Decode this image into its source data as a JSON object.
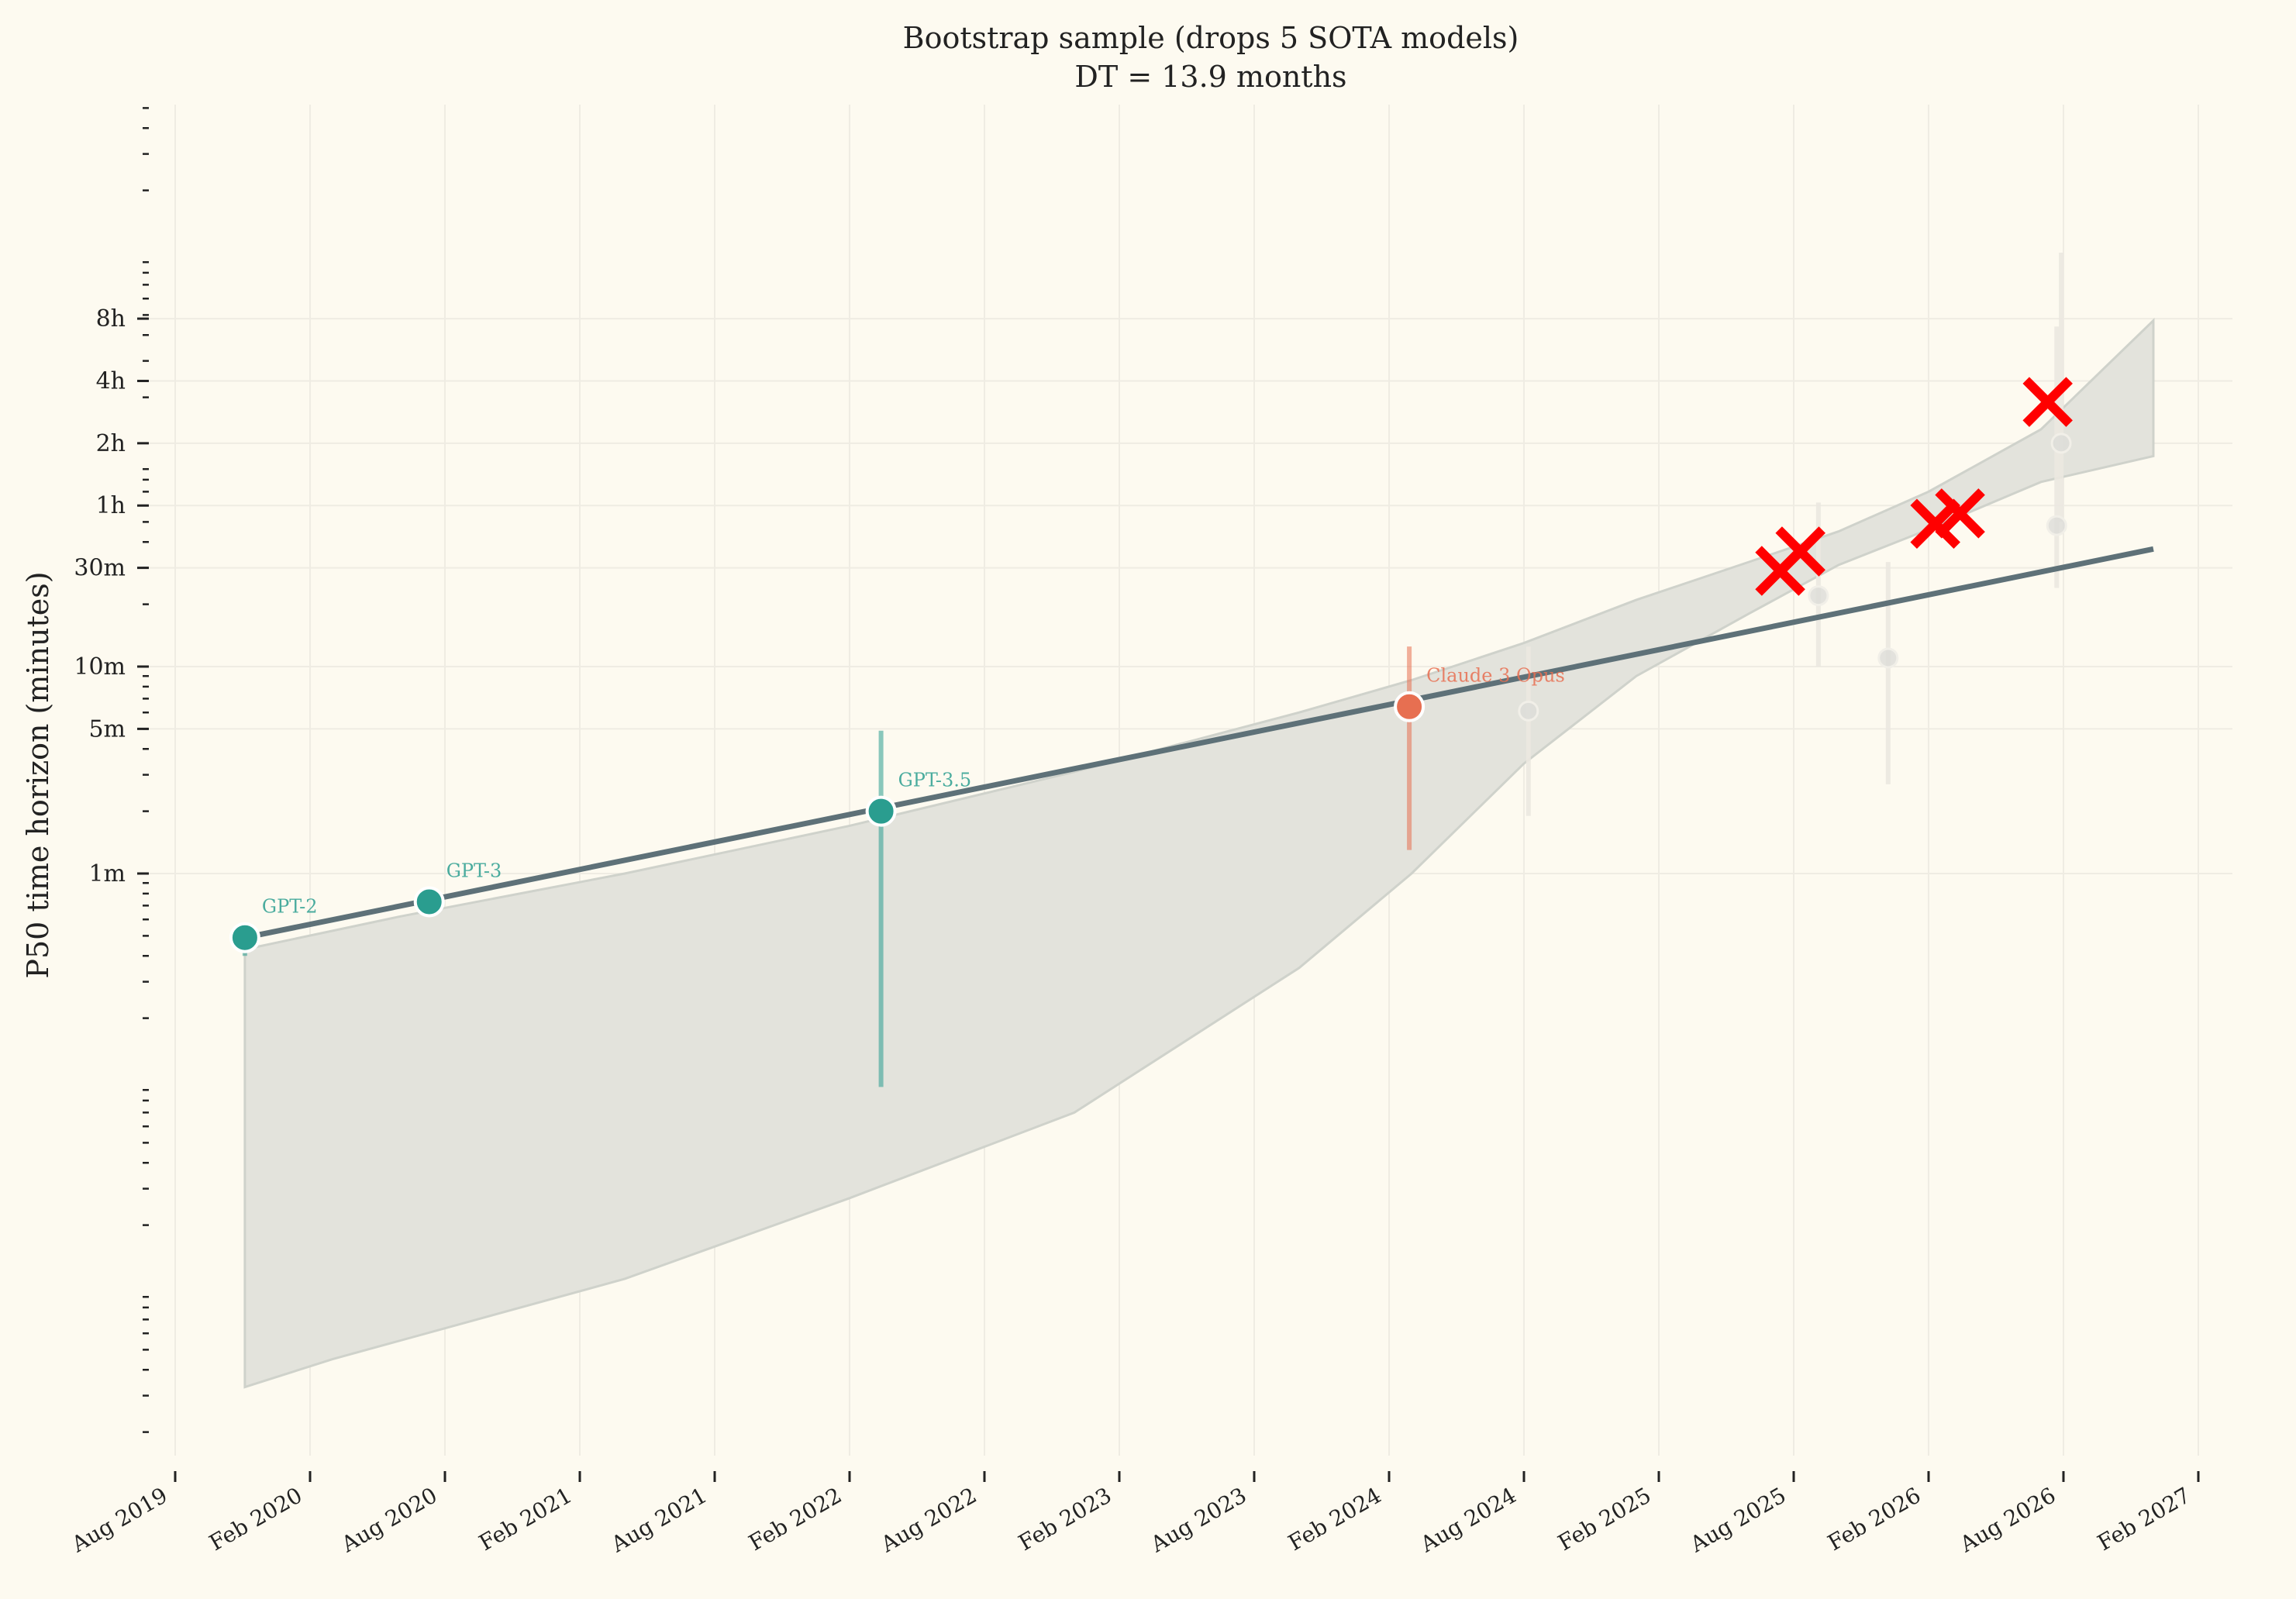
{
  "chart_data": {
    "type": "scatter",
    "title": "Bootstrap sample (drops 5 SOTA models)",
    "subtitle": "DT = 13.9 months",
    "xlabel": "",
    "ylabel": "P50 time horizon (minutes)",
    "y_scale": "log",
    "ylim_minutes": [
      0.002,
      3000
    ],
    "y_ticks": [
      {
        "label": "1m",
        "minutes": 1
      },
      {
        "label": "5m",
        "minutes": 5
      },
      {
        "label": "10m",
        "minutes": 10
      },
      {
        "label": "30m",
        "minutes": 30
      },
      {
        "label": "1h",
        "minutes": 60
      },
      {
        "label": "2h",
        "minutes": 120
      },
      {
        "label": "4h",
        "minutes": 240
      },
      {
        "label": "8h",
        "minutes": 480
      }
    ],
    "x_ticks": [
      "Aug 2019",
      "Feb 2020",
      "Aug 2020",
      "Feb 2021",
      "Aug 2021",
      "Feb 2022",
      "Aug 2022",
      "Feb 2023",
      "Aug 2023",
      "Feb 2024",
      "Aug 2024",
      "Feb 2025",
      "Aug 2025",
      "Feb 2026",
      "Aug 2026",
      "Feb 2027"
    ],
    "grid": true,
    "trend_line": {
      "color": "#5e7178",
      "start": {
        "month_from_aug2019": 3.1,
        "minutes": 0.49
      },
      "end": {
        "month_from_aug2019": 88.0,
        "minutes": 37
      }
    },
    "confidence_band": {
      "color": "#e3e3dc",
      "upper": [
        [
          3.1,
          0.43
        ],
        [
          10,
          0.62
        ],
        [
          20,
          1.0
        ],
        [
          30,
          1.7
        ],
        [
          40,
          3.1
        ],
        [
          50,
          6.0
        ],
        [
          55,
          8.6
        ],
        [
          60,
          13
        ],
        [
          65,
          21
        ],
        [
          70,
          32
        ],
        [
          74,
          45
        ],
        [
          78,
          70
        ],
        [
          83,
          140
        ],
        [
          88,
          470
        ]
      ],
      "lower": [
        [
          3.1,
          0.43
        ],
        [
          3.1,
          0.0033
        ],
        [
          7,
          0.0045
        ],
        [
          20,
          0.011
        ],
        [
          30,
          0.027
        ],
        [
          40,
          0.07
        ],
        [
          50,
          0.35
        ],
        [
          55,
          1.0
        ],
        [
          60,
          3.4
        ],
        [
          65,
          9
        ],
        [
          70,
          18
        ],
        [
          74,
          31
        ],
        [
          78,
          46
        ],
        [
          83,
          78
        ],
        [
          88,
          104
        ]
      ]
    },
    "points": [
      {
        "label": "GPT-2",
        "month_from_aug2019": 3.1,
        "minutes": 0.49,
        "err_low": 0.4,
        "err_high": 0.54,
        "color": "#2a9d8f",
        "highlighted": true
      },
      {
        "label": "GPT-3",
        "month_from_aug2019": 11.3,
        "minutes": 0.73,
        "err_low": 0.64,
        "err_high": 0.84,
        "color": "#2a9d8f",
        "highlighted": true
      },
      {
        "label": "GPT-3.5",
        "month_from_aug2019": 31.4,
        "minutes": 2.0,
        "err_low": 0.093,
        "err_high": 4.9,
        "color": "#2a9d8f",
        "highlighted": true
      },
      {
        "label": "Claude 3 Opus",
        "month_from_aug2019": 54.9,
        "minutes": 6.4,
        "err_low": 1.3,
        "err_high": 12.5,
        "color": "#e76f51",
        "highlighted": true
      },
      {
        "label": "",
        "month_from_aug2019": 60.2,
        "minutes": 6.1,
        "err_low": 1.9,
        "err_high": 12.5,
        "color": "#dcdcd8",
        "highlighted": false
      },
      {
        "label": "",
        "month_from_aug2019": 73.1,
        "minutes": 22,
        "err_low": 10,
        "err_high": 62,
        "color": "#dcdcd8",
        "highlighted": false
      },
      {
        "label": "",
        "month_from_aug2019": 76.2,
        "minutes": 11,
        "err_low": 2.7,
        "err_high": 32,
        "color": "#dcdcd8",
        "highlighted": false
      },
      {
        "label": "",
        "month_from_aug2019": 83.7,
        "minutes": 48,
        "err_low": 24,
        "err_high": 440,
        "color": "#dcdcd8",
        "highlighted": false
      },
      {
        "label": "",
        "month_from_aug2019": 83.9,
        "minutes": 120,
        "err_low": 50,
        "err_high": 1000,
        "color": "#dcdcd8",
        "highlighted": false
      }
    ],
    "dropped_models": [
      {
        "month_from_aug2019": 71.4,
        "minutes": 29,
        "marker": "x",
        "color": "#ff0000"
      },
      {
        "month_from_aug2019": 72.3,
        "minutes": 36,
        "marker": "x",
        "color": "#ff0000"
      },
      {
        "month_from_aug2019": 78.3,
        "minutes": 49,
        "marker": "x",
        "color": "#ff0000"
      },
      {
        "month_from_aug2019": 79.4,
        "minutes": 55,
        "marker": "x",
        "color": "#ff0000"
      },
      {
        "month_from_aug2019": 83.3,
        "minutes": 190,
        "marker": "x",
        "color": "#ff0000"
      }
    ]
  }
}
